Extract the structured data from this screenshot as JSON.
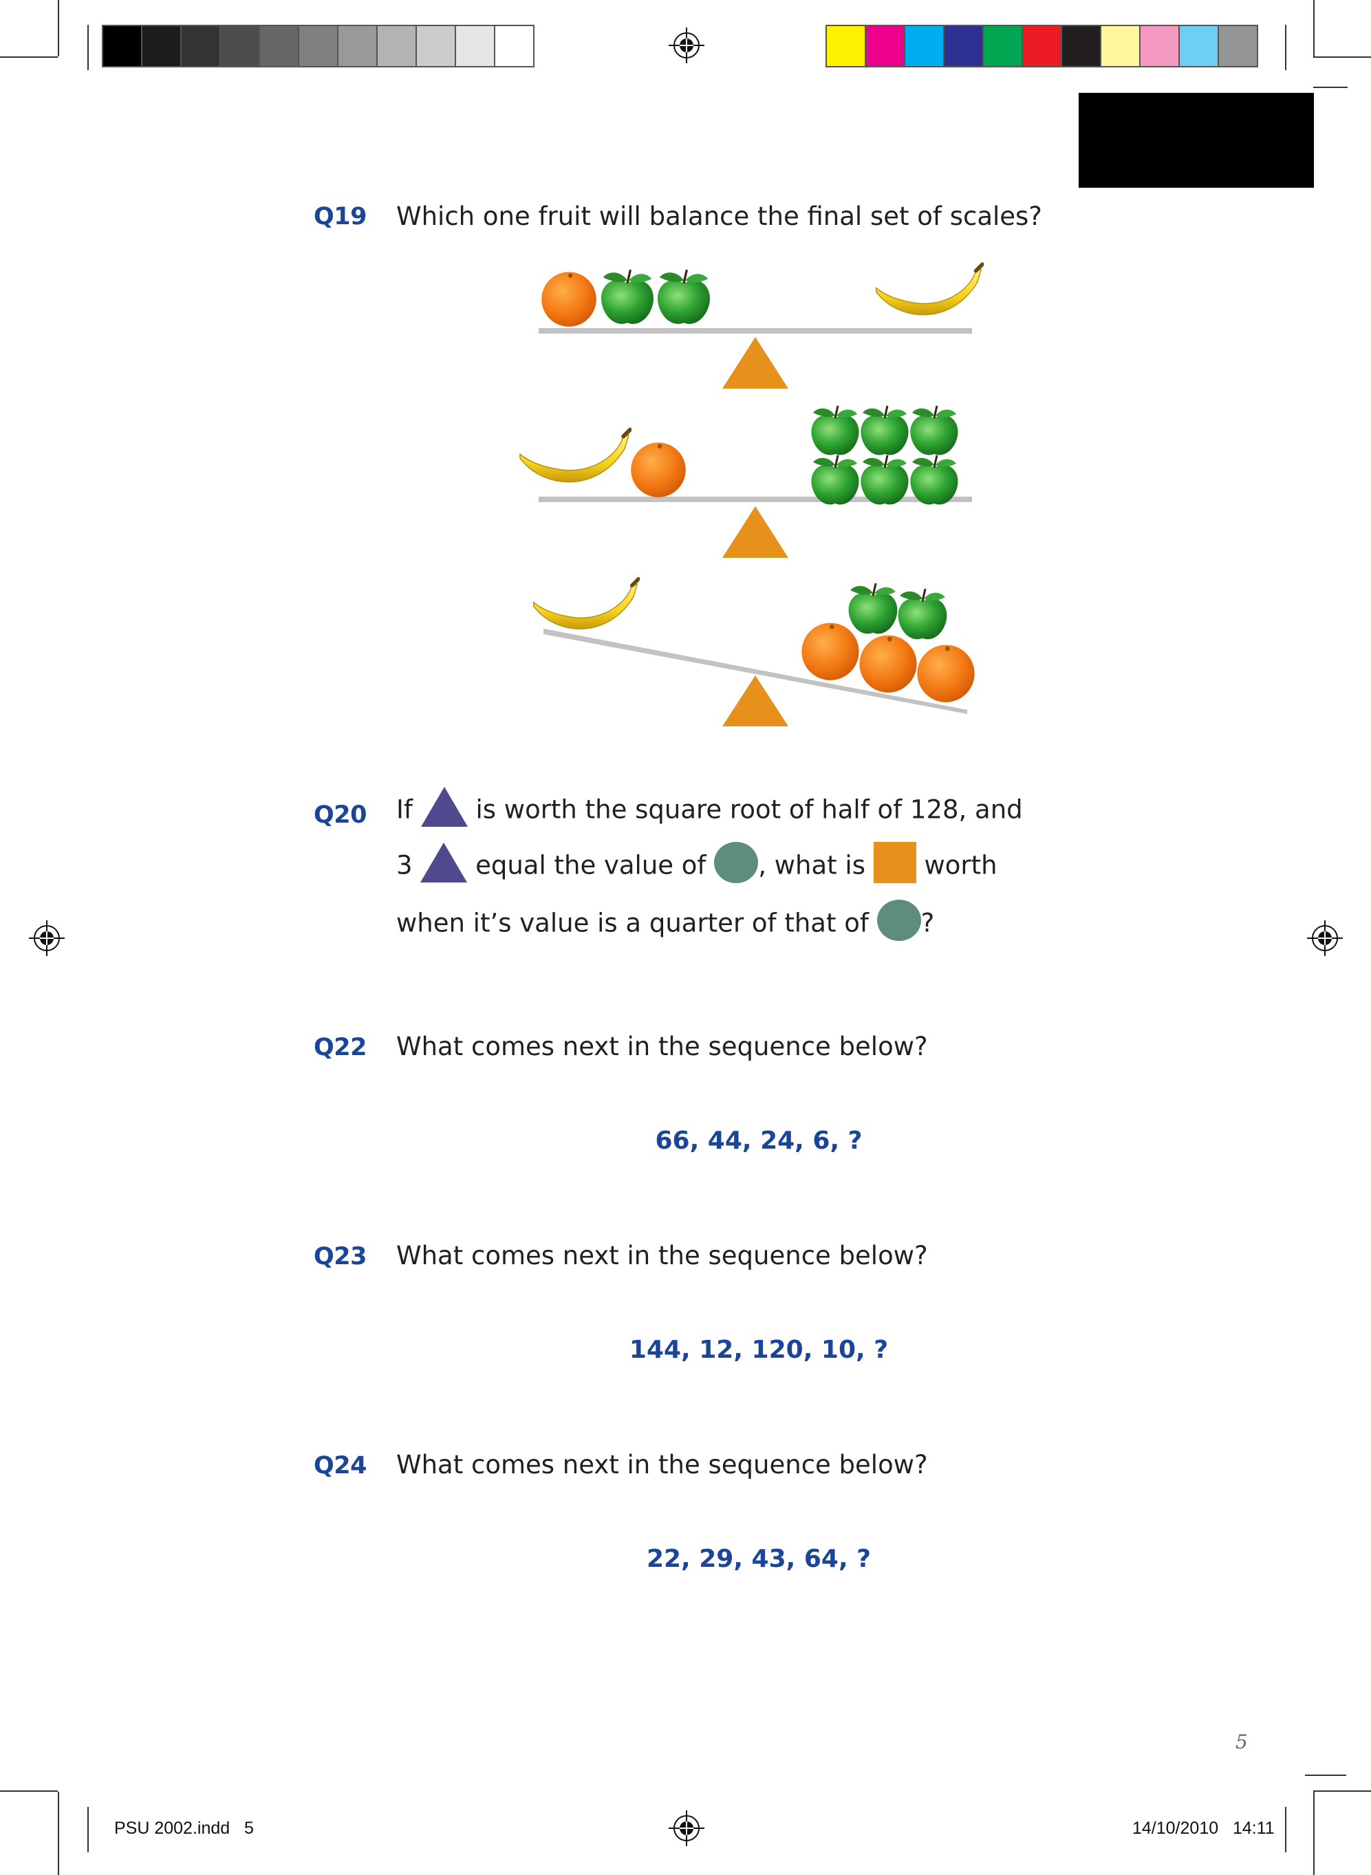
{
  "colors": {
    "question_blue": "#1a4599",
    "triangle_purple": "#4f4a8e",
    "circle_green": "#5e8d7b",
    "square_orange": "#e6911c",
    "fulcrum_orange": "#e6911c",
    "beam_gray": "#c2c2c2"
  },
  "grayscale_swatches": [
    "#000000",
    "#1c1c1c",
    "#333333",
    "#4d4d4d",
    "#666666",
    "#808080",
    "#999999",
    "#b3b3b3",
    "#cccccc",
    "#e6e6e6",
    "#ffffff"
  ],
  "color_swatches": [
    "#fff200",
    "#ec008c",
    "#00aeef",
    "#2e3192",
    "#00a651",
    "#ed1c24",
    "#231f20",
    "#fff799",
    "#f49ac1",
    "#6dcff6",
    "#959595"
  ],
  "questions": {
    "q19": {
      "label": "Q19",
      "text": "Which one fruit will balance the final set of scales?",
      "scales": [
        {
          "state": "balanced",
          "left": [
            "orange",
            "apple",
            "apple"
          ],
          "right": [
            "banana"
          ]
        },
        {
          "state": "balanced",
          "left": [
            "banana",
            "orange"
          ],
          "right": [
            "apple",
            "apple",
            "apple",
            "apple",
            "apple",
            "apple"
          ]
        },
        {
          "state": "tilted-right-down",
          "left": [
            "banana"
          ],
          "right": [
            "orange",
            "orange",
            "orange",
            "apple",
            "apple"
          ]
        }
      ]
    },
    "q20": {
      "label": "Q20",
      "line1_a": "If",
      "line1_b": "is worth the square root of half of 128, and",
      "line2_a": "3",
      "line2_b": "equal the value of",
      "line2_c": ", what is",
      "line2_d": "worth",
      "line3_a": "when it’s value is a quarter of that of",
      "line3_b": "?"
    },
    "q22": {
      "label": "Q22",
      "text": "What comes next in the sequence below?",
      "sequence": "66, 44, 24, 6, ?"
    },
    "q23": {
      "label": "Q23",
      "text": "What comes next in the sequence below?",
      "sequence": "144, 12, 120, 10, ?"
    },
    "q24": {
      "label": "Q24",
      "text": "What comes next in the sequence below?",
      "sequence": "22, 29, 43, 64, ?"
    }
  },
  "page_number": "5",
  "footer": {
    "file": "PSU 2002.indd   5",
    "timestamp": "14/10/2010   14:11"
  }
}
